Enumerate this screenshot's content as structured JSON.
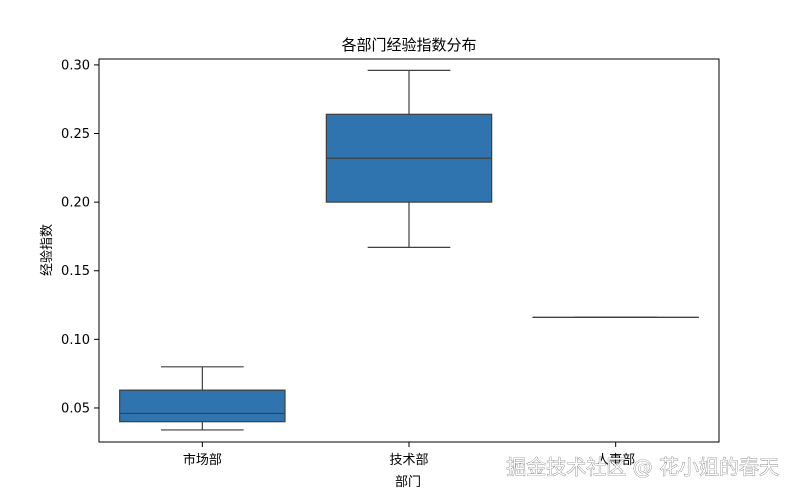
{
  "chart_data": {
    "type": "box",
    "title": "各部门经验指数分布",
    "xlabel": "部门",
    "ylabel": "经验指数",
    "categories": [
      "市场部",
      "技术部",
      "人事部"
    ],
    "boxes": [
      {
        "category": "市场部",
        "whisker_low": 0.034,
        "q1": 0.04,
        "median": 0.046,
        "q3": 0.063,
        "whisker_high": 0.08
      },
      {
        "category": "技术部",
        "whisker_low": 0.167,
        "q1": 0.2,
        "median": 0.232,
        "q3": 0.264,
        "whisker_high": 0.296
      },
      {
        "category": "人事部",
        "whisker_low": 0.116,
        "q1": 0.116,
        "median": 0.116,
        "q3": 0.116,
        "whisker_high": 0.116
      }
    ],
    "yticks": [
      0.05,
      0.1,
      0.15,
      0.2,
      0.25,
      0.3
    ],
    "ytick_labels": [
      "0.05",
      "0.10",
      "0.15",
      "0.20",
      "0.25",
      "0.30"
    ],
    "ylim": [
      0.0252,
      0.3043
    ],
    "grid": false,
    "colors": {
      "box_fill": "#2f74ae",
      "box_edge": "#3f3f3f",
      "axis": "#000000"
    }
  },
  "watermark": "掘金技术社区 @ 花小姐的春天"
}
